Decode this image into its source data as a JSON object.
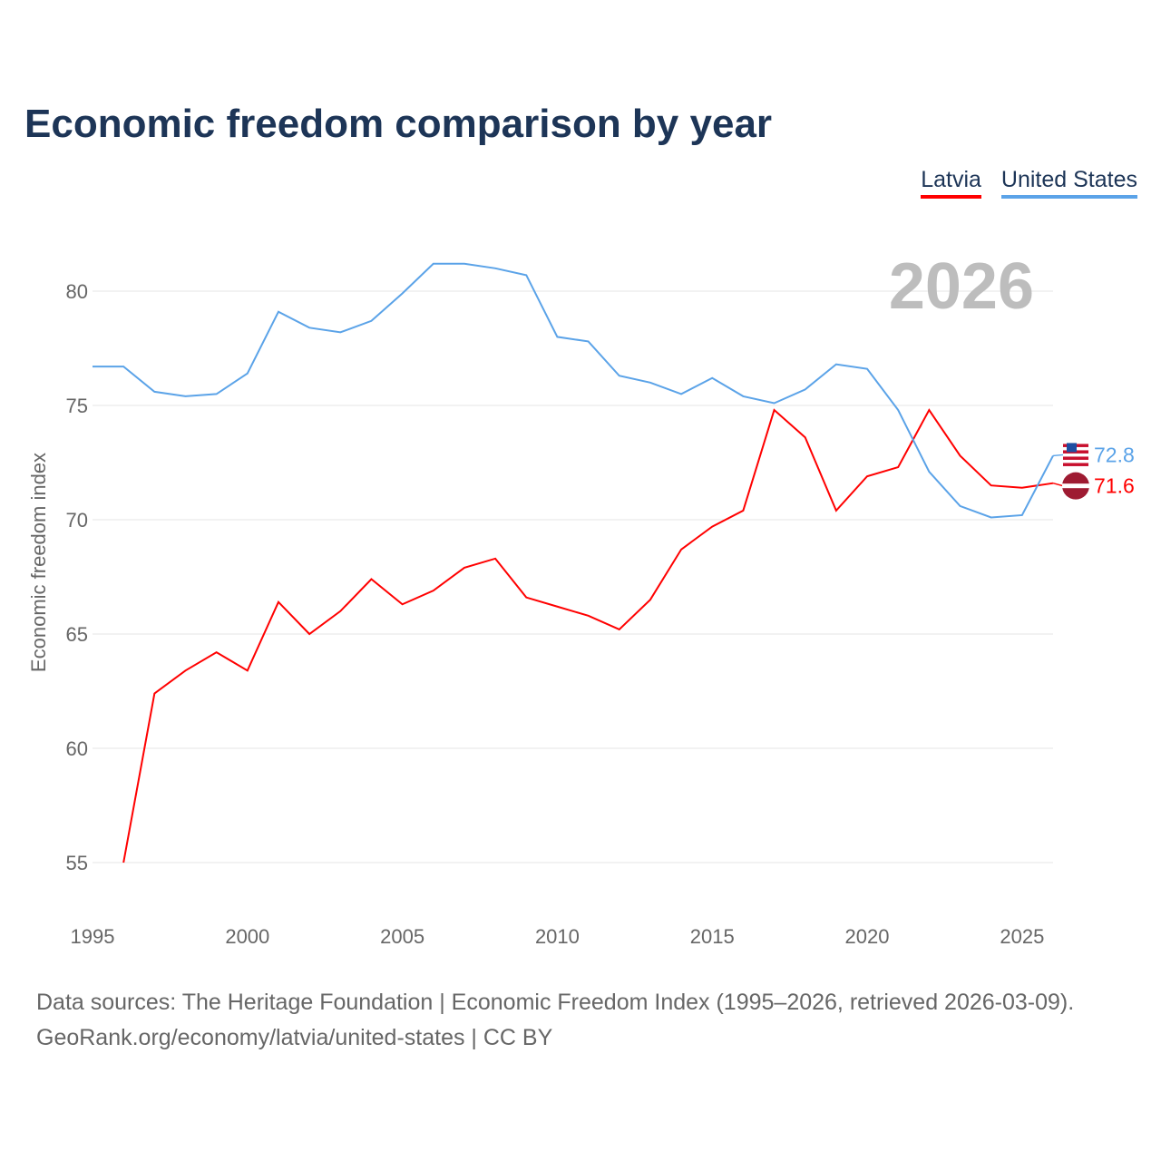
{
  "title": "Economic freedom comparison by year",
  "source_line1": "Data sources: The Heritage Foundation | Economic Freedom Index (1995–2026, retrieved 2026-03-09).",
  "source_line2": "GeoRank.org/economy/latvia/united-states | CC BY",
  "chart_data": {
    "type": "line",
    "title": "Economic freedom comparison by year",
    "xlabel": "",
    "ylabel": "Economic freedom index",
    "year_watermark": "2026",
    "xlim": [
      1995,
      2026
    ],
    "ylim": [
      53,
      83
    ],
    "xticks": [
      1995,
      2000,
      2005,
      2010,
      2015,
      2020,
      2025
    ],
    "yticks": [
      55,
      60,
      65,
      70,
      75,
      80
    ],
    "grid": true,
    "legend_position": "top-right",
    "series": [
      {
        "name": "Latvia",
        "color": "#ff0000",
        "end_label": "71.6",
        "flag": "latvia-flag",
        "x": [
          1996,
          1997,
          1998,
          1999,
          2000,
          2001,
          2002,
          2003,
          2004,
          2005,
          2006,
          2007,
          2008,
          2009,
          2010,
          2011,
          2012,
          2013,
          2014,
          2015,
          2016,
          2017,
          2018,
          2019,
          2020,
          2021,
          2022,
          2023,
          2024,
          2025,
          2026
        ],
        "values": [
          55.0,
          62.4,
          63.4,
          64.2,
          63.4,
          66.4,
          65.0,
          66.0,
          67.4,
          66.3,
          66.9,
          67.9,
          68.3,
          66.6,
          66.2,
          65.8,
          65.2,
          66.5,
          68.7,
          69.7,
          70.4,
          74.8,
          73.6,
          70.4,
          71.9,
          72.3,
          74.8,
          72.8,
          71.5,
          71.4,
          71.6
        ]
      },
      {
        "name": "United States",
        "color": "#5ba3e8",
        "end_label": "72.8",
        "flag": "us-flag",
        "x": [
          1995,
          1996,
          1997,
          1998,
          1999,
          2000,
          2001,
          2002,
          2003,
          2004,
          2005,
          2006,
          2007,
          2008,
          2009,
          2010,
          2011,
          2012,
          2013,
          2014,
          2015,
          2016,
          2017,
          2018,
          2019,
          2020,
          2021,
          2022,
          2023,
          2024,
          2025,
          2026
        ],
        "values": [
          76.7,
          76.7,
          75.6,
          75.4,
          75.5,
          76.4,
          79.1,
          78.4,
          78.2,
          78.7,
          79.9,
          81.2,
          81.2,
          81.0,
          80.7,
          78.0,
          77.8,
          76.3,
          76.0,
          75.5,
          76.2,
          75.4,
          75.1,
          75.7,
          76.8,
          76.6,
          74.8,
          72.1,
          70.6,
          70.1,
          70.2,
          72.8
        ]
      }
    ]
  }
}
